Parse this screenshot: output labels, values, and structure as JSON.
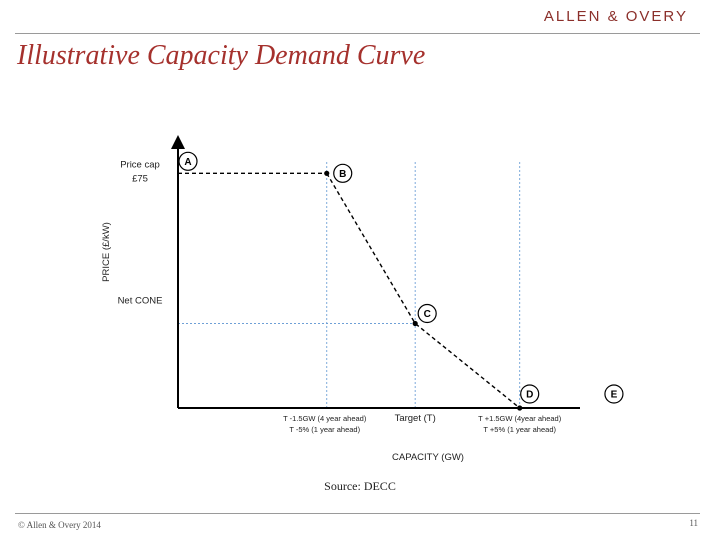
{
  "header": {
    "logo_text": "ALLEN & OVERY",
    "title": "Illustrative Capacity Demand Curve"
  },
  "footer": {
    "source": "Source: DECC",
    "copyright": "© Allen & Overy 2014",
    "page_number": "11"
  },
  "colors": {
    "brand": "#8b2f2a",
    "title": "#a5312d",
    "axis": "#000000",
    "guide": "#6fa0d6"
  },
  "chart_data": {
    "type": "line",
    "xlabel": "CAPACITY (GW)",
    "ylabel": "PRICE (£/kW)",
    "y_tick_labels": [
      {
        "lines": [
          "Price cap",
          "£75"
        ],
        "level": "price_cap"
      },
      {
        "lines": [
          "Net CONE"
        ],
        "level": "net_cone"
      }
    ],
    "x_tick_labels": [
      {
        "lines": [
          "T -1.5GW (4 year ahead)",
          "T -5% (1 year ahead)"
        ],
        "anchor": "B"
      },
      {
        "lines": [
          "Target (T)"
        ],
        "anchor": "C"
      },
      {
        "lines": [
          "T +1.5GW (4year ahead)",
          "T +5% (1 year ahead)"
        ],
        "anchor": "D"
      }
    ],
    "points": [
      {
        "label": "A",
        "x": 0,
        "y": 75
      },
      {
        "label": "B",
        "x": 0.37,
        "y": 75
      },
      {
        "label": "C",
        "x": 0.59,
        "y": 27
      },
      {
        "label": "D",
        "x": 0.85,
        "y": 0
      },
      {
        "label": "E",
        "x": 0.97,
        "y": 0
      }
    ],
    "curve": [
      "B",
      "C",
      "D"
    ],
    "cap_line": [
      "A",
      "B"
    ],
    "xlim": [
      0,
      1
    ],
    "ylim": [
      0,
      85
    ],
    "grid": false,
    "legend": "none"
  }
}
